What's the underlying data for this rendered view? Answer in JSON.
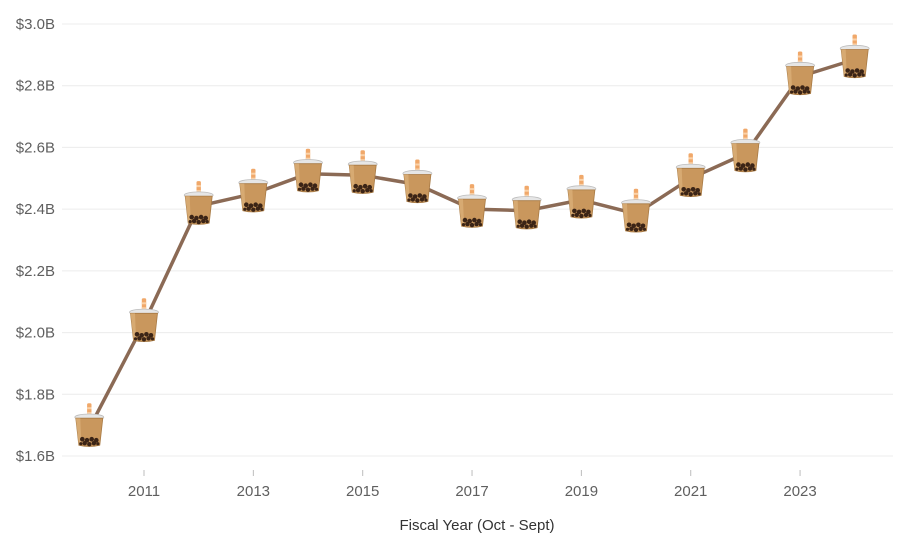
{
  "chart_data": {
    "type": "line",
    "title": "",
    "xlabel": "Fiscal Year (Oct - Sept)",
    "ylabel": "",
    "x": [
      2010,
      2011,
      2012,
      2013,
      2014,
      2015,
      2016,
      2017,
      2018,
      2019,
      2020,
      2021,
      2022,
      2023,
      2024
    ],
    "series": [
      {
        "values": [
          1.69,
          2.03,
          2.41,
          2.45,
          2.515,
          2.51,
          2.48,
          2.4,
          2.395,
          2.43,
          2.385,
          2.5,
          2.58,
          2.83,
          2.885
        ]
      }
    ],
    "xticks": [
      2011,
      2013,
      2015,
      2017,
      2019,
      2021,
      2023
    ],
    "xtick_labels": [
      "2011",
      "2013",
      "2015",
      "2017",
      "2019",
      "2021",
      "2023"
    ],
    "yticks": [
      1.6,
      1.8,
      2.0,
      2.2,
      2.4,
      2.6,
      2.8,
      3.0
    ],
    "ytick_labels": [
      "$1.6B",
      "$1.8B",
      "$2.0B",
      "$2.2B",
      "$2.4B",
      "$2.6B",
      "$2.8B",
      "$3.0B"
    ],
    "ylim": [
      1.6,
      3.0
    ],
    "xlim": [
      2009.5,
      2024.7
    ],
    "grid": true,
    "legend": "none",
    "marker": "bubble-tea-icon",
    "line_color": "#8b6a55"
  }
}
